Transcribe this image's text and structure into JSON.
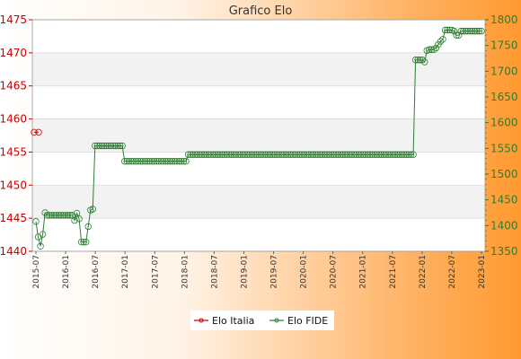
{
  "chart_data": {
    "type": "line",
    "title": "Grafico Elo",
    "y_left": {
      "min": 1440,
      "max": 1475,
      "step": 5,
      "ticks": [
        "1440",
        "1445",
        "1450",
        "1455",
        "1460",
        "1465",
        "1470",
        "1475"
      ],
      "color": "#cc0000"
    },
    "y_right": {
      "min": 1350,
      "max": 1800,
      "step": 50,
      "ticks": [
        "1350",
        "1400",
        "1450",
        "1500",
        "1550",
        "1600",
        "1650",
        "1700",
        "1750",
        "1800"
      ],
      "color": "#2e7d32"
    },
    "x_tick_labels": [
      "2015-07",
      "2016-01",
      "2016-07",
      "2017-01",
      "2017-07",
      "2018-01",
      "2018-07",
      "2019-01",
      "2019-07",
      "2020-01",
      "2020-07",
      "2021-01",
      "2021-07",
      "2022-01",
      "2022-07",
      "2023-01"
    ],
    "series": [
      {
        "name": "Elo Italia",
        "axis": "left",
        "color": "#cc0000",
        "values": [
          1458,
          1458
        ]
      },
      {
        "name": "Elo FIDE",
        "axis": "right",
        "color": "#2e7d32",
        "values": [
          1408,
          1378,
          1360,
          1383,
          1425,
          1420,
          1420,
          1420,
          1420,
          1420,
          1420,
          1420,
          1420,
          1420,
          1420,
          1420,
          1420,
          1410,
          1424,
          1413,
          1368,
          1368,
          1368,
          1398,
          1430,
          1432,
          1555,
          1555,
          1555,
          1555,
          1555,
          1555,
          1555,
          1555,
          1555,
          1555,
          1555,
          1555,
          1555,
          1525,
          1525,
          1525,
          1525,
          1525,
          1525,
          1525,
          1525,
          1525,
          1525,
          1525,
          1525,
          1525,
          1525,
          1525,
          1525,
          1525,
          1525,
          1525,
          1525,
          1525,
          1525,
          1525,
          1525,
          1525,
          1525,
          1525,
          1525,
          1538,
          1538,
          1538,
          1538,
          1538,
          1538,
          1538,
          1538,
          1538,
          1538,
          1538,
          1538,
          1538,
          1538,
          1538,
          1538,
          1538,
          1538,
          1538,
          1538,
          1538,
          1538,
          1538,
          1538,
          1538,
          1538,
          1538,
          1538,
          1538,
          1538,
          1538,
          1538,
          1538,
          1538,
          1538,
          1538,
          1538,
          1538,
          1538,
          1538,
          1538,
          1538,
          1538,
          1538,
          1538,
          1538,
          1538,
          1538,
          1538,
          1538,
          1538,
          1538,
          1538,
          1538,
          1538,
          1538,
          1538,
          1538,
          1538,
          1538,
          1538,
          1538,
          1538,
          1538,
          1538,
          1538,
          1538,
          1538,
          1538,
          1538,
          1538,
          1538,
          1538,
          1538,
          1538,
          1538,
          1538,
          1538,
          1538,
          1538,
          1538,
          1538,
          1538,
          1538,
          1538,
          1538,
          1538,
          1538,
          1538,
          1538,
          1538,
          1538,
          1538,
          1538,
          1538,
          1538,
          1538,
          1538,
          1538,
          1538,
          1722,
          1722,
          1722,
          1722,
          1718,
          1740,
          1742,
          1742,
          1742,
          1745,
          1752,
          1758,
          1762,
          1780,
          1780,
          1780,
          1780,
          1778,
          1770,
          1770,
          1778,
          1778,
          1778,
          1778,
          1778,
          1778,
          1778,
          1778,
          1778,
          1778
        ]
      }
    ],
    "grid": true,
    "legend_placement": "bottom-center"
  }
}
